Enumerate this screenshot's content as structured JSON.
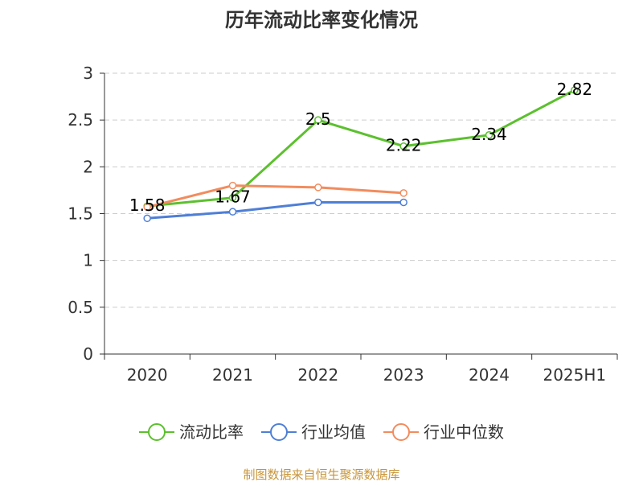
{
  "chart_data": {
    "type": "line",
    "title": "历年流动比率变化情况",
    "categories": [
      "2020",
      "2021",
      "2022",
      "2023",
      "2024",
      "2025H1"
    ],
    "ylim": [
      0,
      3
    ],
    "yticks": [
      "0",
      "0.5",
      "1",
      "1.5",
      "2",
      "2.5",
      "3"
    ],
    "grid": true,
    "legend_position": "bottom",
    "series": [
      {
        "name": "流动比率",
        "color": "#5cc02e",
        "values": [
          1.58,
          1.67,
          2.5,
          2.22,
          2.34,
          2.82
        ],
        "labels": [
          "1.58",
          "1.67",
          "2.5",
          "2.22",
          "2.34",
          "2.82"
        ]
      },
      {
        "name": "行业均值",
        "color": "#4f7fd6",
        "values": [
          1.45,
          1.52,
          1.62,
          1.62,
          null,
          null
        ],
        "labels": []
      },
      {
        "name": "行业中位数",
        "color": "#f28c5e",
        "values": [
          1.57,
          1.8,
          1.78,
          1.72,
          null,
          null
        ],
        "labels": []
      }
    ],
    "source": "制图数据来自恒生聚源数据库"
  }
}
